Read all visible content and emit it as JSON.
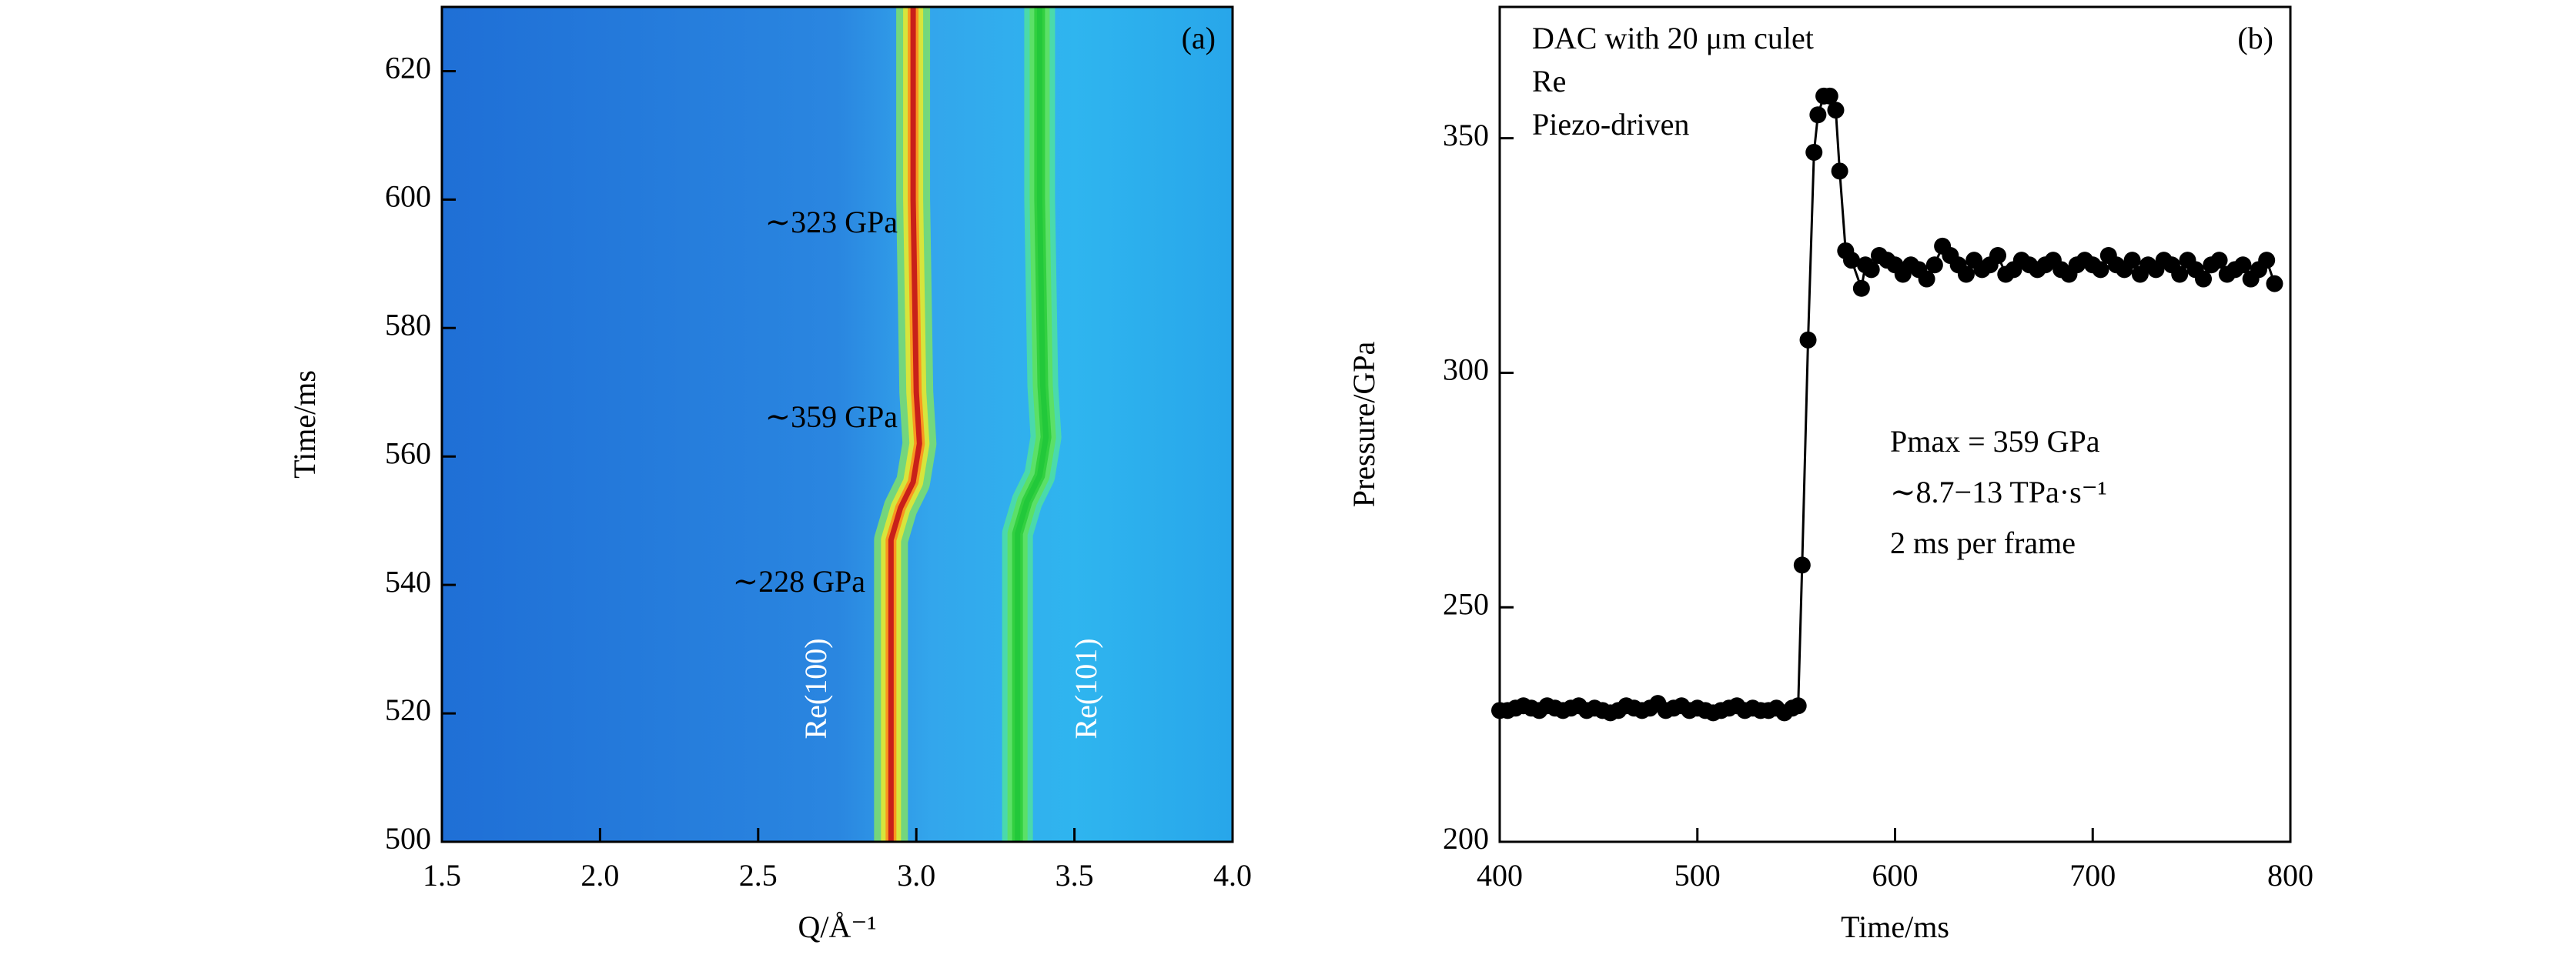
{
  "chart_data": [
    {
      "type": "heatmap",
      "panel_label": "(a)",
      "x_label": "Q/Å⁻¹",
      "y_label": "Time/ms",
      "xlim": [
        1.5,
        4.0
      ],
      "xticks": [
        1.5,
        {
          "value": 2,
          "label": "2.0"
        },
        2.5,
        {
          "value": 3,
          "label": "3.0"
        },
        3.5,
        {
          "value": 4,
          "label": "4.0"
        }
      ],
      "ylim": [
        500,
        630
      ],
      "yticks": [
        500,
        520,
        540,
        560,
        580,
        600,
        620
      ],
      "annotations": [
        "∼323 GPa",
        "∼359 GPa",
        "∼228 GPa"
      ],
      "series": [
        {
          "name": "Re(100)",
          "color": "#c8201a",
          "x": [
            2.92,
            2.92,
            2.95,
            2.99,
            3.01,
            3.0,
            2.99,
            2.99
          ],
          "values": [
            500,
            547,
            552,
            556,
            562,
            570,
            600,
            630
          ]
        },
        {
          "name": "Re(101)",
          "color": "#22c83a",
          "x": [
            3.32,
            3.32,
            3.35,
            3.39,
            3.41,
            3.4,
            3.39,
            3.39
          ],
          "values": [
            500,
            548,
            553,
            557,
            563,
            571,
            600,
            630
          ]
        }
      ]
    },
    {
      "type": "line",
      "panel_label": "(b)",
      "x_label": "Time/ms",
      "y_label": "Pressure/GPa",
      "xlim": [
        400,
        800
      ],
      "xticks": [
        400,
        500,
        600,
        700,
        800
      ],
      "ylim": [
        200,
        378
      ],
      "yticks": [
        200,
        250,
        300,
        350
      ],
      "notes_left": [
        "DAC with 20 μm culet",
        "Re",
        "Piezo-driven"
      ],
      "notes_right": [
        "Pmax = 359 GPa",
        "∼8.7−13 TPa·s⁻¹",
        "2 ms per frame"
      ],
      "x": [
        400,
        404,
        408,
        412,
        416,
        420,
        424,
        428,
        432,
        436,
        440,
        444,
        448,
        452,
        456,
        460,
        464,
        468,
        472,
        476,
        480,
        484,
        488,
        492,
        496,
        500,
        504,
        508,
        512,
        516,
        520,
        524,
        528,
        532,
        536,
        540,
        544,
        548,
        551,
        553,
        556,
        559,
        561,
        564,
        567,
        570,
        572,
        575,
        578,
        583,
        585,
        588,
        592,
        596,
        600,
        604,
        608,
        612,
        616,
        620,
        624,
        628,
        632,
        636,
        640,
        644,
        648,
        652,
        656,
        660,
        664,
        668,
        672,
        676,
        680,
        684,
        688,
        692,
        696,
        700,
        704,
        708,
        712,
        716,
        720,
        724,
        728,
        732,
        736,
        740,
        744,
        748,
        752,
        756,
        760,
        764,
        768,
        772,
        776,
        780,
        784,
        788,
        792
      ],
      "series": [
        {
          "name": "Pressure",
          "color": "#000000",
          "values": [
            228,
            228,
            228.5,
            229,
            228.5,
            228,
            229,
            228.5,
            228,
            228.5,
            229,
            228,
            228.5,
            228,
            227.5,
            228,
            229,
            228.5,
            228,
            228.5,
            229.5,
            228,
            228.5,
            229,
            228,
            228.5,
            228,
            227.5,
            228,
            228.5,
            229,
            228,
            228.5,
            228,
            228,
            228.5,
            227.5,
            228.5,
            229,
            259,
            307,
            347,
            355,
            359,
            359,
            356,
            343,
            326,
            324,
            318,
            323,
            322,
            325,
            324,
            323,
            321,
            323,
            322,
            320,
            323,
            327,
            325,
            323,
            321,
            324,
            322,
            323,
            325,
            321,
            322,
            324,
            323,
            322,
            323,
            324,
            322,
            321,
            323,
            324,
            323,
            322,
            325,
            323,
            322,
            324,
            321,
            323,
            322,
            324,
            323,
            321,
            324,
            322,
            320,
            323,
            324,
            321,
            322,
            323,
            320,
            322,
            324,
            319
          ]
        }
      ]
    }
  ]
}
